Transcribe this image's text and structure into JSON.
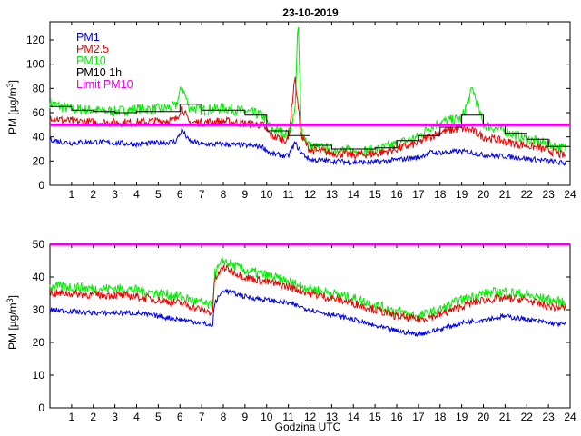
{
  "chart_data": [
    {
      "type": "line",
      "title": "23-10-2019",
      "xlabel": "",
      "ylabel": "PM [µg/m³]",
      "xlim": [
        0,
        24
      ],
      "ylim": [
        0,
        135
      ],
      "xticks": [
        "1",
        "2",
        "3",
        "4",
        "5",
        "6",
        "7",
        "8",
        "9",
        "10",
        "11",
        "12",
        "13",
        "14",
        "15",
        "16",
        "17",
        "18",
        "19",
        "20",
        "21",
        "22",
        "23",
        "24"
      ],
      "yticks": [
        "0",
        "20",
        "40",
        "60",
        "80",
        "100",
        "120"
      ],
      "legend": [
        "PM1",
        "PM2.5",
        "PM10",
        "PM10 1h",
        "Limit PM10"
      ],
      "colors": {
        "PM1": "#0000ee",
        "PM2.5": "#ee0000",
        "PM10": "#00ee00",
        "PM10 1h": "#000000",
        "Limit PM10": "#ee00ee"
      },
      "limit": 50,
      "series": [
        {
          "name": "PM1",
          "x": [
            0,
            0.5,
            1,
            2,
            3,
            4,
            5,
            5.8,
            6.1,
            6.4,
            7,
            8,
            9,
            9.8,
            10.2,
            11,
            11.3,
            11.6,
            12,
            13,
            14,
            15,
            16,
            17,
            17.5,
            18,
            19,
            19.5,
            20,
            21,
            22,
            23,
            23.8
          ],
          "values": [
            38,
            36,
            35,
            36,
            35,
            34,
            35,
            36,
            46,
            37,
            34,
            34,
            33,
            32,
            26,
            24,
            35,
            27,
            21,
            20,
            19,
            19,
            21,
            23,
            27,
            27,
            28,
            27,
            25,
            24,
            22,
            20,
            18
          ]
        },
        {
          "name": "PM2.5",
          "x": [
            0,
            0.5,
            1,
            2,
            3,
            4,
            5,
            5.8,
            6.1,
            6.4,
            7,
            8,
            9,
            9.8,
            10.2,
            11,
            11.3,
            11.6,
            12,
            13,
            14,
            15,
            16,
            17,
            17.5,
            18,
            19,
            19.5,
            20,
            21,
            22,
            23,
            23.8
          ],
          "values": [
            57,
            54,
            53,
            52,
            52,
            52,
            53,
            54,
            65,
            52,
            52,
            53,
            51,
            50,
            41,
            37,
            90,
            40,
            29,
            27,
            25,
            26,
            30,
            35,
            40,
            44,
            47,
            45,
            40,
            36,
            33,
            29,
            24
          ]
        },
        {
          "name": "PM10",
          "x": [
            0,
            0.5,
            1,
            2,
            3,
            4,
            5,
            5.8,
            6.1,
            6.4,
            7,
            8,
            9,
            9.8,
            10.2,
            11,
            11.3,
            11.45,
            11.6,
            12,
            13,
            14,
            15,
            16,
            17,
            17.5,
            18,
            19,
            19.5,
            20,
            21,
            22,
            23,
            23.8
          ],
          "values": [
            68,
            65,
            63,
            62,
            61,
            63,
            63,
            65,
            82,
            65,
            62,
            64,
            61,
            58,
            47,
            42,
            60,
            135,
            45,
            32,
            30,
            28,
            29,
            34,
            40,
            48,
            52,
            55,
            80,
            50,
            45,
            38,
            34,
            30
          ]
        },
        {
          "name": "PM10 1h",
          "x": [
            0,
            1,
            1,
            2,
            2,
            3,
            3,
            4,
            4,
            5,
            5,
            6,
            6,
            7,
            7,
            8,
            8,
            9,
            9,
            10,
            10,
            11,
            11,
            12,
            12,
            13,
            13,
            14,
            14,
            15,
            15,
            16,
            16,
            17,
            17,
            18,
            18,
            19,
            19,
            20,
            20,
            21,
            21,
            22,
            22,
            23,
            23,
            24
          ],
          "values": [
            65,
            65,
            62,
            62,
            61,
            61,
            60,
            60,
            61,
            61,
            61,
            61,
            67,
            67,
            62,
            62,
            62,
            62,
            58,
            58,
            45,
            45,
            41,
            41,
            33,
            33,
            30,
            30,
            30,
            30,
            31,
            31,
            37,
            37,
            41,
            41,
            48,
            48,
            58,
            58,
            50,
            50,
            43,
            43,
            38,
            38,
            32,
            32
          ]
        }
      ]
    },
    {
      "type": "line",
      "title": "",
      "xlabel": "Godzina UTC",
      "ylabel": "PM [µg/m³]",
      "xlim": [
        0,
        24
      ],
      "ylim": [
        0,
        50
      ],
      "xticks": [
        "1",
        "2",
        "3",
        "4",
        "5",
        "6",
        "7",
        "8",
        "9",
        "10",
        "11",
        "12",
        "13",
        "14",
        "15",
        "16",
        "17",
        "18",
        "19",
        "20",
        "21",
        "22",
        "23",
        "24"
      ],
      "yticks": [
        "0",
        "10",
        "20",
        "30",
        "40",
        "50"
      ],
      "limit": 50,
      "series": [
        {
          "name": "PM1",
          "x": [
            0,
            1,
            2,
            3,
            4,
            5,
            6,
            7,
            7.5,
            7.6,
            8,
            9,
            10,
            11,
            12,
            13,
            14,
            15,
            16,
            17,
            18,
            19,
            20,
            21,
            22,
            23,
            23.8
          ],
          "values": [
            30,
            29.5,
            29,
            29,
            29,
            28,
            27,
            26,
            25,
            32,
            36,
            34,
            33,
            32,
            30,
            28.5,
            27,
            25,
            23.5,
            22.5,
            24,
            26,
            27,
            28,
            27,
            26,
            25.5
          ]
        },
        {
          "name": "PM2.5",
          "x": [
            0,
            1,
            2,
            3,
            4,
            5,
            6,
            7,
            7.5,
            7.6,
            8,
            9,
            10,
            11,
            12,
            13,
            14,
            15,
            16,
            17,
            18,
            19,
            20,
            21,
            22,
            23,
            23.8
          ],
          "values": [
            35,
            35,
            34.5,
            34.5,
            34,
            33,
            32,
            30,
            29,
            39,
            43,
            40,
            38.5,
            37,
            35,
            33.5,
            32,
            30,
            28,
            27,
            28.5,
            31,
            33,
            33.5,
            33,
            31,
            30.5
          ]
        },
        {
          "name": "PM10",
          "x": [
            0,
            1,
            2,
            3,
            4,
            5,
            6,
            7,
            7.5,
            7.6,
            8,
            9,
            10,
            11,
            12,
            13,
            14,
            15,
            16,
            17,
            18,
            19,
            20,
            21,
            22,
            23,
            23.8
          ],
          "values": [
            37,
            37,
            36.5,
            36.5,
            36,
            35,
            34,
            32,
            31,
            41,
            45,
            42,
            40.5,
            38.5,
            36.5,
            35,
            33.5,
            31.5,
            29.5,
            28,
            30,
            33,
            35,
            35.5,
            34.5,
            33,
            32
          ]
        }
      ]
    }
  ]
}
